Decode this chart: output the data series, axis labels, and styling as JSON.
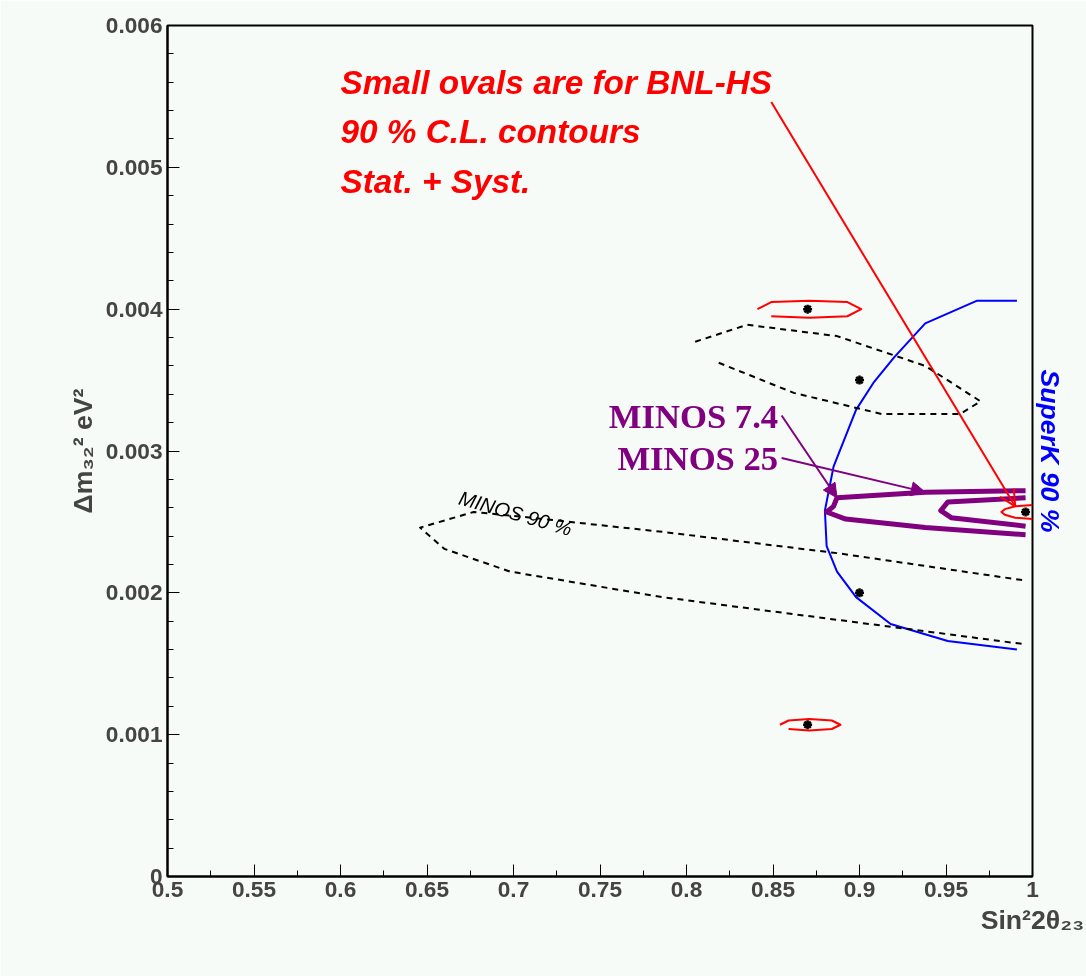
{
  "chart_data": {
    "type": "line",
    "xlabel": "Sin²2θ₂₃",
    "ylabel": "Δm₃₂² eV²",
    "xlim": [
      0.5,
      1
    ],
    "ylim": [
      0,
      0.006
    ],
    "xticks": [
      0.5,
      0.55,
      0.6,
      0.65,
      0.7,
      0.75,
      0.8,
      0.85,
      0.9,
      0.95,
      1
    ],
    "yticks": [
      0,
      0.001,
      0.002,
      0.003,
      0.004,
      0.005,
      0.006
    ],
    "grid": false,
    "legend": false,
    "series": [
      {
        "name": "SuperK 90 %",
        "color": "#0000ff",
        "line_style": "solid",
        "x": [
          0.991,
          0.968,
          0.938,
          0.92,
          0.908,
          0.898,
          0.885,
          0.88,
          0.881,
          0.887,
          0.898,
          0.918,
          0.951,
          0.991
        ],
        "values": [
          0.00406,
          0.00406,
          0.0039,
          0.00366,
          0.00348,
          0.00329,
          0.00289,
          0.00258,
          0.00233,
          0.00215,
          0.00197,
          0.00178,
          0.00166,
          0.0016
        ]
      },
      {
        "name": "MINOS 90 %",
        "color": "#000000",
        "line_style": "dashed",
        "x": [
          0.994,
          0.887,
          0.786,
          0.71,
          0.677,
          0.646,
          0.66,
          0.698,
          0.786,
          0.887,
          0.994
        ],
        "values": [
          0.00209,
          0.00228,
          0.00243,
          0.00253,
          0.00257,
          0.00246,
          0.00231,
          0.00215,
          0.00197,
          0.00181,
          0.00164
        ]
      },
      {
        "color": "#000000",
        "line_style": "dashed",
        "x": [
          0.805,
          0.835,
          0.887,
          0.938,
          0.97,
          0.958,
          0.913,
          0.862,
          0.817
        ],
        "values": [
          0.00377,
          0.00389,
          0.00381,
          0.0036,
          0.00335,
          0.00326,
          0.00326,
          0.00341,
          0.00363
        ]
      },
      {
        "color": "#800080",
        "line_style": "solid",
        "x": [
          0.996,
          0.938,
          0.887,
          0.885,
          0.881,
          0.892,
          0.938,
          0.996
        ],
        "values": [
          0.00272,
          0.00271,
          0.00267,
          0.00261,
          0.00257,
          0.00252,
          0.00246,
          0.00241
        ]
      },
      {
        "color": "#800080",
        "line_style": "solid",
        "x": [
          0.996,
          0.951,
          0.947,
          0.953,
          0.996
        ],
        "values": [
          0.00267,
          0.00264,
          0.00258,
          0.00253,
          0.00247
        ]
      },
      {
        "color": "#ff0000",
        "line_style": "solid",
        "x": [
          0.841,
          0.849,
          0.871,
          0.893,
          0.901,
          0.893,
          0.871,
          0.849
        ],
        "values": [
          0.004,
          0.00405,
          0.00406,
          0.00405,
          0.004,
          0.00395,
          0.00394,
          0.00395
        ]
      },
      {
        "color": "#ff0000",
        "line_style": "solid",
        "x": [
          0.854,
          0.859,
          0.871,
          0.884,
          0.889,
          0.884,
          0.871,
          0.859
        ],
        "values": [
          0.00107,
          0.0011,
          0.00111,
          0.0011,
          0.00107,
          0.00104,
          0.00103,
          0.00104
        ]
      },
      {
        "color": "#ff0000",
        "line_style": "solid",
        "x": [
          1.0,
          0.99,
          0.984,
          0.982,
          0.984,
          0.99,
          1.0
        ],
        "values": [
          0.00262,
          0.00261,
          0.00259,
          0.00257,
          0.00255,
          0.00253,
          0.00252
        ]
      },
      {
        "type": "scatter",
        "marker": "cross",
        "color": "#000000",
        "x": [
          0.87,
          0.9,
          0.9,
          0.87,
          0.996
        ],
        "values": [
          0.004,
          0.0035,
          0.002,
          0.00107,
          0.00257
        ]
      }
    ],
    "annotations": [
      {
        "text": "Small ovals are for BNL-HS",
        "x": 0.99,
        "y": 0.00261
      },
      "90 % C.L. contours",
      "Stat. + Syst.",
      {
        "text": "MINOS 7.4",
        "x": 0.887,
        "y": 0.00267
      },
      {
        "text": "MINOS 25",
        "x": 0.938,
        "y": 0.00271
      }
    ]
  }
}
